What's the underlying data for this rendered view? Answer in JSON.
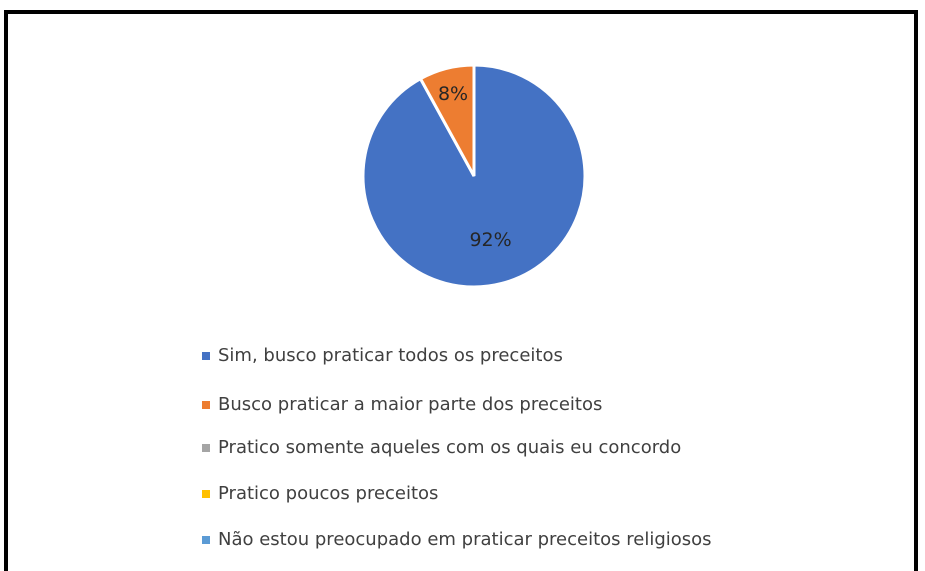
{
  "chart_data": {
    "type": "pie",
    "categories": [
      "Sim, busco praticar todos os preceitos",
      "Busco praticar a maior parte dos preceitos",
      "Pratico somente aqueles com os quais eu concordo",
      "Pratico poucos preceitos",
      "Não estou preocupado em praticar preceitos religiosos"
    ],
    "values": [
      92,
      8,
      0,
      0,
      0
    ],
    "value_labels": [
      "92%",
      "8%",
      null,
      null,
      null
    ],
    "colors": [
      "#4472c4",
      "#ed7d31",
      "#a5a5a5",
      "#ffc000",
      "#5b9bd5"
    ],
    "legend": "bottom"
  }
}
